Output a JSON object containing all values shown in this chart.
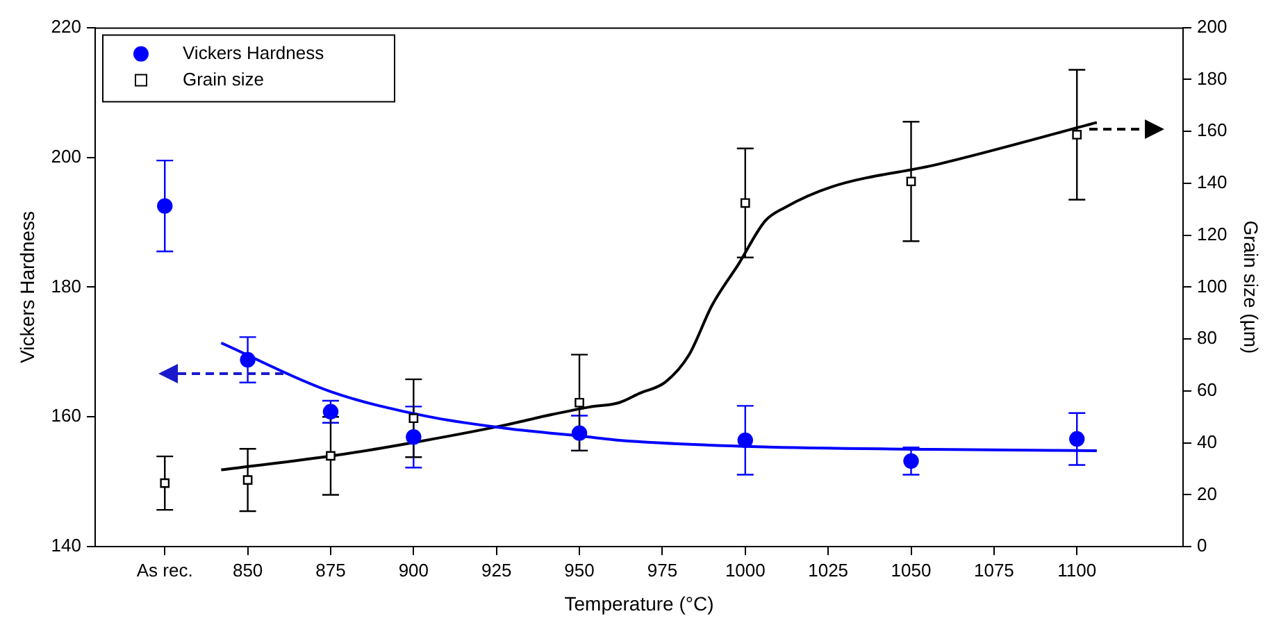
{
  "chart_data": {
    "type": "scatter",
    "xlabel": "Temperature (°C)",
    "ylabel": "Vickers Hardness",
    "y2label": "Grain size (µm)",
    "x": [
      825,
      850,
      875,
      900,
      950,
      1000,
      1050,
      1100
    ],
    "xlim": [
      804,
      1132
    ],
    "xticks": [
      {
        "value": 825,
        "label": "As rec."
      },
      850,
      875,
      900,
      925,
      950,
      975,
      1000,
      1025,
      1050,
      1075,
      1100
    ],
    "ylim": [
      140,
      220
    ],
    "yticks": [
      140,
      160,
      180,
      200,
      220
    ],
    "y2lim": [
      0,
      200
    ],
    "y2ticks": [
      0,
      20,
      40,
      60,
      80,
      100,
      120,
      140,
      160,
      180,
      200
    ],
    "grid": false,
    "legend": "top left",
    "series": [
      {
        "name": "Vickers Hardness",
        "type": "scatter",
        "marker": "circle",
        "color": "#0000ff",
        "values": [
          192.5,
          168.8,
          160.8,
          156.9,
          157.5,
          156.4,
          153.2,
          156.6
        ],
        "errors": [
          7,
          3.5,
          1.7,
          4.7,
          2.7,
          5.3,
          2.1,
          4
        ]
      },
      {
        "name": "Grain size",
        "type": "scatter",
        "marker": "square",
        "color": "#000000",
        "axis": "y2",
        "values": [
          24.5,
          25.7,
          35,
          49.5,
          55.5,
          132.4,
          140.7,
          158.7
        ],
        "errors": [
          10.3,
          12,
          15,
          15,
          18.5,
          21,
          23,
          25
        ]
      },
      {
        "type": "line",
        "marker": "none",
        "color": "#0000ff",
        "x": [
          842,
          875,
          904,
          927,
          953,
          962,
          1004,
          1056,
          1106
        ],
        "values": [
          171.4,
          163.9,
          160.1,
          158.3,
          156.9,
          156.4,
          155.4,
          155,
          154.8
        ]
      },
      {
        "type": "line",
        "marker": "none",
        "color": "#000000",
        "axis": "y2",
        "x": [
          842,
          877,
          902,
          927,
          942,
          953,
          962,
          968,
          976,
          983,
          990,
          998,
          1006,
          1012,
          1026,
          1058,
          1106
        ],
        "values": [
          29.6,
          35.3,
          40.6,
          46.7,
          51,
          53.8,
          55.5,
          59,
          63.5,
          73.8,
          93,
          108.9,
          125.5,
          130.7,
          138.6,
          147.3,
          163.4
        ]
      }
    ]
  }
}
